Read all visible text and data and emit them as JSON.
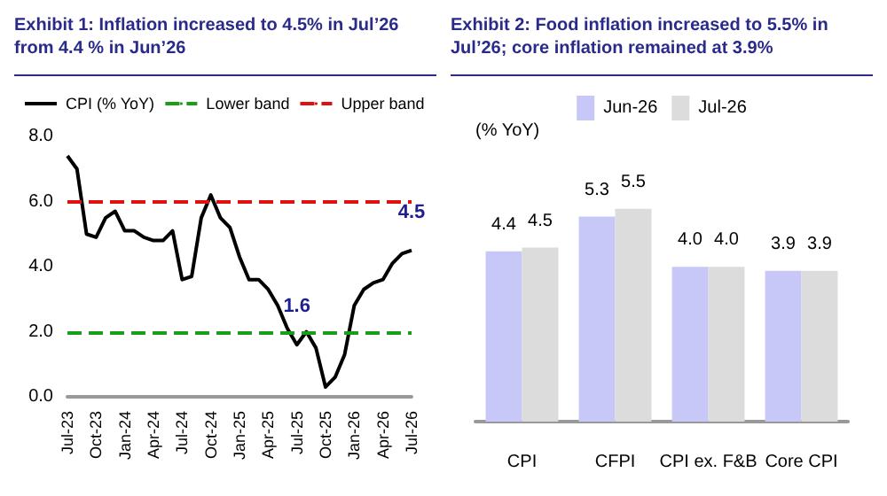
{
  "chart_data": [
    {
      "type": "line",
      "title": "Exhibit 1: Inflation increased to 4.5% in Jul’26 from 4.4 % in Jun’26",
      "categories": [
        "Jul-23",
        null,
        null,
        "Oct-23",
        null,
        null,
        "Jan-24",
        null,
        null,
        "Apr-24",
        null,
        null,
        "Jul-24",
        null,
        null,
        "Oct-24",
        null,
        null,
        "Jan-25",
        null,
        null,
        "Apr-25",
        null,
        null,
        "Jul-25",
        null,
        null,
        "Oct-25",
        null,
        null,
        "Jan-26",
        null,
        null,
        "Apr-26",
        null,
        null,
        "Jul-26"
      ],
      "series": [
        {
          "name": "CPI (% YoY)",
          "color": "#000000",
          "values": [
            7.4,
            7.0,
            5.0,
            4.9,
            5.5,
            5.7,
            5.1,
            5.1,
            4.9,
            4.8,
            4.8,
            5.1,
            3.6,
            3.7,
            5.5,
            6.2,
            5.5,
            5.2,
            4.3,
            3.6,
            3.6,
            3.3,
            2.8,
            2.1,
            1.6,
            2.0,
            1.5,
            0.3,
            0.6,
            1.3,
            2.8,
            3.3,
            3.5,
            3.6,
            4.1,
            4.4,
            4.5
          ],
          "value_labels": [
            null,
            null,
            null,
            null,
            null,
            null,
            null,
            null,
            null,
            null,
            null,
            null,
            null,
            null,
            null,
            null,
            null,
            null,
            null,
            null,
            null,
            null,
            null,
            null,
            "1.6",
            null,
            null,
            null,
            null,
            null,
            null,
            null,
            null,
            null,
            null,
            null,
            "4.5"
          ]
        }
      ],
      "ylim": [
        0,
        8
      ],
      "yticks": [
        {
          "value": 0,
          "label": "0.0"
        },
        {
          "value": 2,
          "label": "2.0"
        },
        {
          "value": 4,
          "label": "4.0"
        },
        {
          "value": 6,
          "label": "6.0"
        },
        {
          "value": 8,
          "label": "8.0"
        }
      ],
      "ref_lines": [
        {
          "axis": "y",
          "value": 2,
          "label": "Lower band",
          "color": "#1a9e1a",
          "line_style": "dashed"
        },
        {
          "axis": "y",
          "value": 6,
          "label": "Upper band",
          "color": "#e01010",
          "line_style": "dashed"
        }
      ],
      "grid": false,
      "legend": "top",
      "marker": "none",
      "line_style": "solid"
    },
    {
      "type": "bar",
      "title": "Exhibit 2: Food inflation increased to 5.5% in Jul’26; core inflation remained at 3.9%",
      "ylabel": "(% YoY)",
      "categories": [
        "CPI",
        "CFPI",
        "CPI ex. F&B",
        "Core CPI"
      ],
      "series": [
        {
          "name": "Jun-26",
          "color": "#c8c8f8",
          "values": [
            4.4,
            5.3,
            4.0,
            3.9
          ],
          "value_labels": [
            "4.4",
            "5.3",
            "4.0",
            "3.9"
          ]
        },
        {
          "name": "Jul-26",
          "color": "#dcdcdc",
          "values": [
            4.5,
            5.5,
            4.0,
            3.9
          ],
          "value_labels": [
            "4.5",
            "5.5",
            "4.0",
            "3.9"
          ]
        }
      ],
      "grid": false,
      "legend": "top"
    }
  ]
}
